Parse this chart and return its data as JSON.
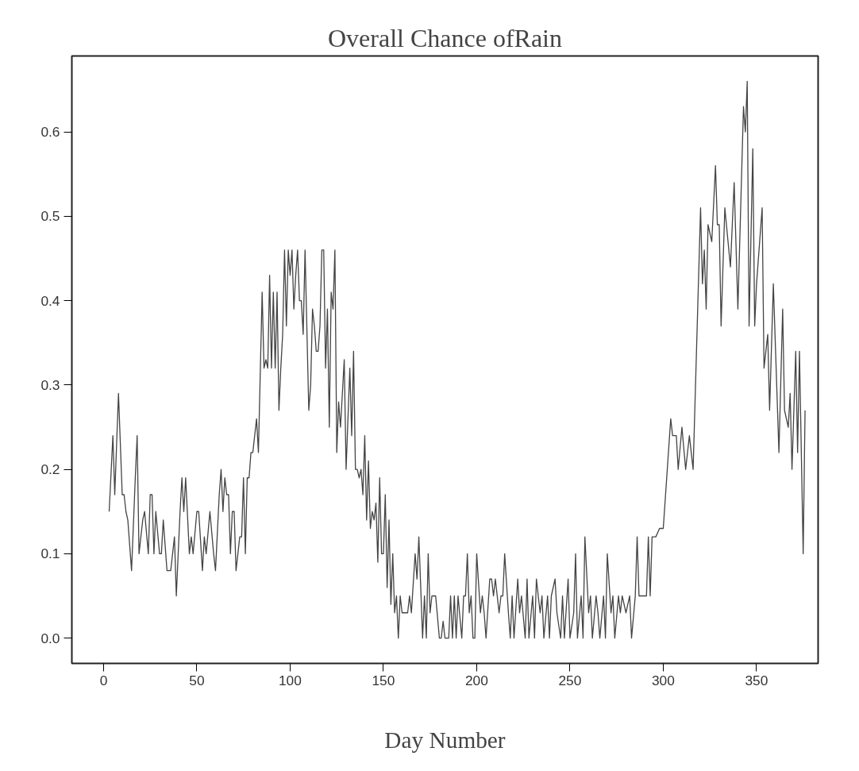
{
  "chart_data": {
    "type": "line",
    "title": "Overall Chance ofRain",
    "xlabel": "Day Number",
    "xlim": [
      -17,
      383
    ],
    "ylim": [
      -0.03,
      0.69
    ],
    "xticks": [
      0,
      50,
      100,
      150,
      200,
      250,
      300,
      350
    ],
    "yticks": [
      {
        "value": 0,
        "label": "0.0"
      },
      0.1,
      0.2,
      0.3,
      0.4,
      0.5,
      0.6
    ],
    "grid": false,
    "marker": "none",
    "line_style": "solid",
    "series": [
      {
        "color": "#444444",
        "x": [
          3,
          5,
          6,
          8,
          10,
          11,
          12,
          13,
          15,
          17,
          18,
          19,
          21,
          22,
          24,
          25,
          26,
          27,
          28,
          30,
          31,
          32,
          34,
          36,
          38,
          39,
          41,
          42,
          43,
          44,
          46,
          47,
          48,
          50,
          51,
          53,
          54,
          55,
          57,
          59,
          60,
          62,
          63,
          64,
          65,
          66,
          67,
          68,
          69,
          70,
          71,
          73,
          74,
          75,
          76,
          77,
          78,
          79,
          80,
          82,
          83,
          85,
          86,
          87,
          88,
          89,
          90,
          91,
          92,
          93,
          94,
          95,
          96,
          97,
          98,
          99,
          100,
          101,
          102,
          103,
          104,
          105,
          106,
          107,
          108,
          110,
          111,
          112,
          113,
          114,
          115,
          116,
          117,
          118,
          119,
          120,
          121,
          122,
          123,
          124,
          125,
          126,
          127,
          129,
          130,
          132,
          133,
          134,
          135,
          136,
          137,
          138,
          139,
          140,
          141,
          142,
          143,
          144,
          145,
          146,
          147,
          148,
          149,
          150,
          151,
          152,
          153,
          154,
          155,
          156,
          157,
          158,
          159,
          160,
          162,
          163,
          164,
          165,
          167,
          168,
          169,
          170,
          171,
          172,
          173,
          174,
          175,
          176,
          178,
          180,
          181,
          182,
          183,
          185,
          186,
          187,
          188,
          189,
          190,
          192,
          193,
          194,
          195,
          196,
          197,
          198,
          199,
          200,
          202,
          203,
          204,
          205,
          207,
          208,
          209,
          210,
          212,
          213,
          214,
          215,
          217,
          218,
          219,
          220,
          222,
          223,
          224,
          226,
          227,
          228,
          230,
          231,
          232,
          234,
          235,
          236,
          238,
          239,
          240,
          242,
          243,
          245,
          246,
          247,
          249,
          250,
          252,
          253,
          254,
          256,
          257,
          258,
          260,
          261,
          262,
          264,
          265,
          266,
          268,
          269,
          270,
          272,
          273,
          274,
          276,
          277,
          278,
          280,
          282,
          283,
          285,
          286,
          287,
          289,
          291,
          292,
          293,
          294,
          296,
          298,
          300,
          304,
          305,
          307,
          308,
          310,
          312,
          314,
          316,
          320,
          321,
          322,
          323,
          324,
          326,
          328,
          329,
          330,
          331,
          333,
          336,
          338,
          340,
          343,
          344,
          345,
          346,
          348,
          349,
          350,
          353,
          354,
          356,
          357,
          359,
          362,
          364,
          365,
          367,
          368,
          369,
          371,
          372,
          373,
          375,
          376
        ],
        "values": [
          0.15,
          0.24,
          0.17,
          0.29,
          0.17,
          0.17,
          0.15,
          0.14,
          0.08,
          0.19,
          0.24,
          0.1,
          0.14,
          0.15,
          0.1,
          0.17,
          0.17,
          0.1,
          0.15,
          0.1,
          0.1,
          0.14,
          0.08,
          0.08,
          0.12,
          0.05,
          0.15,
          0.19,
          0.15,
          0.19,
          0.1,
          0.12,
          0.1,
          0.15,
          0.15,
          0.08,
          0.12,
          0.1,
          0.15,
          0.1,
          0.08,
          0.17,
          0.2,
          0.15,
          0.19,
          0.17,
          0.17,
          0.1,
          0.15,
          0.15,
          0.08,
          0.12,
          0.12,
          0.19,
          0.1,
          0.19,
          0.19,
          0.22,
          0.22,
          0.26,
          0.22,
          0.41,
          0.32,
          0.33,
          0.32,
          0.43,
          0.32,
          0.41,
          0.32,
          0.41,
          0.27,
          0.32,
          0.36,
          0.46,
          0.37,
          0.46,
          0.43,
          0.46,
          0.39,
          0.43,
          0.46,
          0.4,
          0.4,
          0.36,
          0.46,
          0.27,
          0.3,
          0.39,
          0.37,
          0.34,
          0.34,
          0.37,
          0.46,
          0.46,
          0.32,
          0.39,
          0.25,
          0.41,
          0.39,
          0.46,
          0.22,
          0.28,
          0.25,
          0.33,
          0.2,
          0.32,
          0.24,
          0.34,
          0.2,
          0.2,
          0.19,
          0.2,
          0.17,
          0.24,
          0.14,
          0.21,
          0.13,
          0.15,
          0.14,
          0.16,
          0.09,
          0.19,
          0.1,
          0.1,
          0.17,
          0.06,
          0.14,
          0.04,
          0.1,
          0.03,
          0.05,
          0.0,
          0.05,
          0.03,
          0.03,
          0.03,
          0.05,
          0.03,
          0.1,
          0.07,
          0.12,
          0.06,
          0.0,
          0.05,
          0.0,
          0.1,
          0.03,
          0.05,
          0.05,
          0.0,
          0.0,
          0.02,
          0.0,
          0.0,
          0.05,
          0.0,
          0.05,
          0.0,
          0.05,
          0.0,
          0.05,
          0.05,
          0.1,
          0.03,
          0.05,
          0.0,
          0.0,
          0.1,
          0.03,
          0.05,
          0.03,
          0.0,
          0.07,
          0.07,
          0.05,
          0.07,
          0.03,
          0.05,
          0.05,
          0.1,
          0.03,
          0.0,
          0.05,
          0.0,
          0.07,
          0.03,
          0.05,
          0.0,
          0.07,
          0.0,
          0.05,
          0.0,
          0.07,
          0.03,
          0.05,
          0.0,
          0.05,
          0.0,
          0.05,
          0.07,
          0.03,
          0.0,
          0.05,
          0.0,
          0.07,
          0.0,
          0.03,
          0.1,
          0.0,
          0.05,
          0.0,
          0.12,
          0.03,
          0.05,
          0.0,
          0.05,
          0.03,
          0.0,
          0.05,
          0.0,
          0.1,
          0.03,
          0.05,
          0.0,
          0.05,
          0.03,
          0.05,
          0.03,
          0.05,
          0.0,
          0.05,
          0.12,
          0.05,
          0.05,
          0.05,
          0.12,
          0.05,
          0.12,
          0.12,
          0.13,
          0.13,
          0.26,
          0.24,
          0.24,
          0.2,
          0.25,
          0.2,
          0.24,
          0.2,
          0.51,
          0.42,
          0.46,
          0.39,
          0.49,
          0.47,
          0.56,
          0.49,
          0.49,
          0.37,
          0.51,
          0.44,
          0.54,
          0.39,
          0.63,
          0.6,
          0.66,
          0.37,
          0.58,
          0.37,
          0.42,
          0.51,
          0.32,
          0.36,
          0.27,
          0.42,
          0.22,
          0.39,
          0.27,
          0.25,
          0.29,
          0.2,
          0.34,
          0.22,
          0.34,
          0.1,
          0.27
        ]
      }
    ]
  }
}
